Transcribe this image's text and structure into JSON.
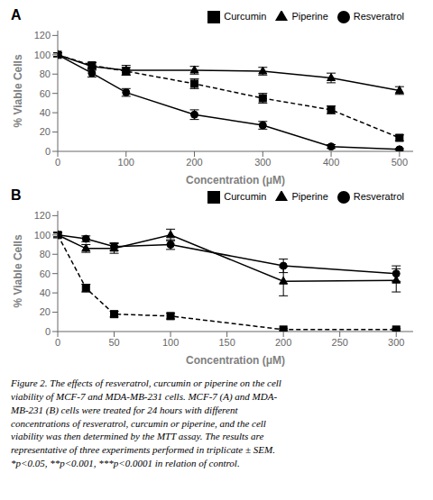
{
  "chart_data": [
    {
      "type": "line",
      "title": "A",
      "xlabel": "Concentration (μM)",
      "ylabel": "% Viable Cells",
      "x": [
        0,
        50,
        100,
        200,
        300,
        400,
        500
      ],
      "series": [
        {
          "name": "Resveratrol",
          "color": "#000000",
          "marker": "circle",
          "line_style": "solid",
          "values": [
            100,
            81,
            61,
            38,
            27,
            5,
            2
          ],
          "errors": [
            2,
            4,
            4,
            5,
            4,
            2,
            1
          ]
        },
        {
          "name": "Curcumin",
          "color": "#000000",
          "marker": "square",
          "line_style": "dashed",
          "values": [
            100,
            89,
            83,
            70,
            55,
            43,
            14
          ],
          "errors": [
            2,
            3,
            4,
            5,
            5,
            4,
            3
          ]
        },
        {
          "name": "Piperine",
          "color": "#000000",
          "marker": "triangle",
          "line_style": "solid",
          "values": [
            100,
            88,
            84,
            84,
            83,
            76,
            63
          ],
          "errors": [
            2,
            4,
            5,
            4,
            4,
            5,
            4
          ]
        }
      ],
      "xlim": [
        0,
        520
      ],
      "ylim": [
        0,
        125
      ],
      "xticks": [
        0,
        100,
        200,
        300,
        400,
        500
      ],
      "yticks": [
        0,
        20,
        40,
        60,
        80,
        100,
        120
      ],
      "grid": false,
      "legend": "upper right"
    },
    {
      "type": "line",
      "title": "B",
      "xlabel": "Concentration (μM)",
      "ylabel": "% Viable Cells",
      "x": [
        0,
        25,
        50,
        100,
        200,
        300
      ],
      "series": [
        {
          "name": "Resveratrol",
          "color": "#000000",
          "marker": "circle",
          "line_style": "solid",
          "values": [
            100,
            96,
            88,
            90,
            68,
            60
          ],
          "errors": [
            2,
            3,
            4,
            5,
            7,
            8
          ]
        },
        {
          "name": "Curcumin",
          "color": "#000000",
          "marker": "square",
          "line_style": "dashed",
          "values": [
            100,
            45,
            18,
            16,
            2,
            2
          ],
          "errors": [
            3,
            4,
            3,
            3,
            1,
            1
          ]
        },
        {
          "name": "Piperine",
          "color": "#000000",
          "marker": "triangle",
          "line_style": "solid",
          "values": [
            100,
            86,
            86,
            100,
            52,
            53
          ],
          "errors": [
            2,
            4,
            5,
            6,
            15,
            12
          ]
        }
      ],
      "xlim": [
        0,
        315
      ],
      "ylim": [
        0,
        125
      ],
      "xticks": [
        0,
        50,
        100,
        150,
        200,
        250,
        300
      ],
      "yticks": [
        0,
        20,
        40,
        60,
        80,
        100,
        120
      ],
      "grid": false,
      "legend": "upper right",
      "annotations": [
        "Figure 2. The effects of resveratrol, curcumin or piperine on the cell",
        "viability of MCF-7 and MDA-MB-231 cells. MCF-7 (A) and MDA-",
        "MB-231 (B) cells were treated for 24 hours with different",
        "concentrations of resveratrol, curcumin or piperine, and the cell",
        "viability was then determined by the MTT assay. The results are",
        "representative of three experiments performed in triplicate ± SEM.",
        "*p<0.05, **p<0.001, ***p<0.0001 in relation of control."
      ]
    }
  ]
}
